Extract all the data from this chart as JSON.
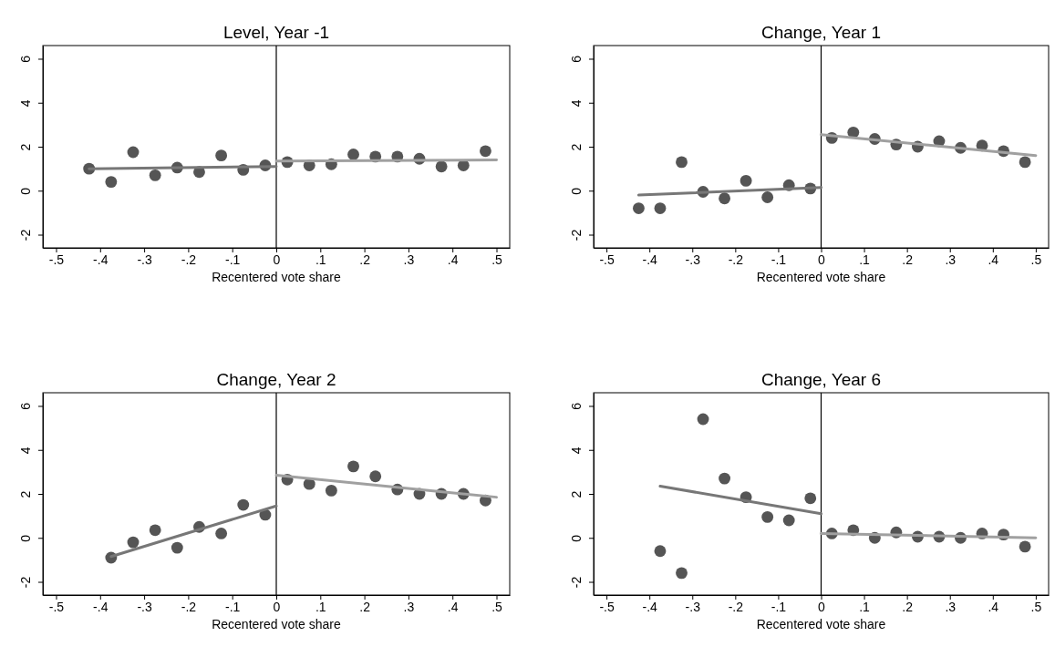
{
  "chart_data": [
    {
      "type": "scatter",
      "title": "Level, Year -1",
      "xlabel": "Recentered vote share",
      "xlim": [
        -0.53,
        0.53
      ],
      "ylim": [
        -2.6,
        6.6
      ],
      "xticks": [
        {
          "value": -0.5,
          "label": "-.5"
        },
        {
          "value": -0.4,
          "label": "-.4"
        },
        {
          "value": -0.3,
          "label": "-.3"
        },
        {
          "value": -0.2,
          "label": "-.2"
        },
        {
          "value": -0.1,
          "label": "-.1"
        },
        {
          "value": 0,
          "label": "0"
        },
        {
          "value": 0.1,
          "label": ".1"
        },
        {
          "value": 0.2,
          "label": ".2"
        },
        {
          "value": 0.3,
          "label": ".3"
        },
        {
          "value": 0.4,
          "label": ".4"
        },
        {
          "value": 0.5,
          "label": ".5"
        }
      ],
      "yticks": [
        -2,
        0,
        2,
        4,
        6
      ],
      "grid": false,
      "ref_lines": [
        {
          "axis": "x",
          "value": 0,
          "color": "#000000"
        }
      ],
      "series": [
        {
          "marker": "circle",
          "color": "#555555",
          "x": [
            -0.425,
            -0.375,
            -0.325,
            -0.275,
            -0.225,
            -0.175,
            -0.125,
            -0.075,
            -0.025,
            0.025,
            0.075,
            0.125,
            0.175,
            0.225,
            0.275,
            0.325,
            0.375,
            0.425,
            0.475
          ],
          "values": [
            1.0,
            0.4,
            1.75,
            0.7,
            1.05,
            0.85,
            1.6,
            0.95,
            1.15,
            1.3,
            1.15,
            1.2,
            1.65,
            1.55,
            1.55,
            1.45,
            1.1,
            1.15,
            1.8
          ]
        },
        {
          "type": "line",
          "color": "#777777",
          "x": [
            -0.425,
            0
          ],
          "values": [
            1.0,
            1.1
          ]
        },
        {
          "type": "line",
          "color": "#a0a0a0",
          "x": [
            0,
            0.5
          ],
          "values": [
            1.35,
            1.4
          ]
        }
      ]
    },
    {
      "type": "scatter",
      "title": "Change, Year 1",
      "xlabel": "Recentered vote share",
      "xlim": [
        -0.53,
        0.53
      ],
      "ylim": [
        -2.6,
        6.6
      ],
      "xticks": [
        {
          "value": -0.5,
          "label": "-.5"
        },
        {
          "value": -0.4,
          "label": "-.4"
        },
        {
          "value": -0.3,
          "label": "-.3"
        },
        {
          "value": -0.2,
          "label": "-.2"
        },
        {
          "value": -0.1,
          "label": "-.1"
        },
        {
          "value": 0,
          "label": "0"
        },
        {
          "value": 0.1,
          "label": ".1"
        },
        {
          "value": 0.2,
          "label": ".2"
        },
        {
          "value": 0.3,
          "label": ".3"
        },
        {
          "value": 0.4,
          "label": ".4"
        },
        {
          "value": 0.5,
          "label": ".5"
        }
      ],
      "yticks": [
        -2,
        0,
        2,
        4,
        6
      ],
      "grid": false,
      "ref_lines": [
        {
          "axis": "x",
          "value": 0,
          "color": "#000000"
        }
      ],
      "series": [
        {
          "marker": "circle",
          "color": "#555555",
          "x": [
            -0.425,
            -0.375,
            -0.325,
            -0.275,
            -0.225,
            -0.175,
            -0.125,
            -0.075,
            -0.025,
            0.025,
            0.075,
            0.125,
            0.175,
            0.225,
            0.275,
            0.325,
            0.375,
            0.425,
            0.475
          ],
          "values": [
            -0.8,
            -0.8,
            1.3,
            -0.05,
            -0.35,
            0.45,
            -0.3,
            0.25,
            0.1,
            2.4,
            2.65,
            2.35,
            2.1,
            2.0,
            2.25,
            1.95,
            2.05,
            1.8,
            1.3
          ]
        },
        {
          "type": "line",
          "color": "#777777",
          "x": [
            -0.425,
            0
          ],
          "values": [
            -0.2,
            0.15
          ]
        },
        {
          "type": "line",
          "color": "#a0a0a0",
          "x": [
            0,
            0.5
          ],
          "values": [
            2.55,
            1.6
          ]
        }
      ]
    },
    {
      "type": "scatter",
      "title": "Change, Year 2",
      "xlabel": "Recentered vote share",
      "xlim": [
        -0.53,
        0.53
      ],
      "ylim": [
        -2.6,
        6.6
      ],
      "xticks": [
        {
          "value": -0.5,
          "label": "-.5"
        },
        {
          "value": -0.4,
          "label": "-.4"
        },
        {
          "value": -0.3,
          "label": "-.3"
        },
        {
          "value": -0.2,
          "label": "-.2"
        },
        {
          "value": -0.1,
          "label": "-.1"
        },
        {
          "value": 0,
          "label": "0"
        },
        {
          "value": 0.1,
          "label": ".1"
        },
        {
          "value": 0.2,
          "label": ".2"
        },
        {
          "value": 0.3,
          "label": ".3"
        },
        {
          "value": 0.4,
          "label": ".4"
        },
        {
          "value": 0.5,
          "label": ".5"
        }
      ],
      "yticks": [
        -2,
        0,
        2,
        4,
        6
      ],
      "grid": false,
      "ref_lines": [
        {
          "axis": "x",
          "value": 0,
          "color": "#000000"
        }
      ],
      "series": [
        {
          "marker": "circle",
          "color": "#555555",
          "x": [
            -0.375,
            -0.325,
            -0.275,
            -0.225,
            -0.175,
            -0.125,
            -0.075,
            -0.025,
            0.025,
            0.075,
            0.125,
            0.175,
            0.225,
            0.275,
            0.325,
            0.375,
            0.425,
            0.475
          ],
          "values": [
            -0.9,
            -0.2,
            0.35,
            -0.45,
            0.5,
            0.2,
            1.5,
            1.05,
            2.65,
            2.45,
            2.15,
            3.25,
            2.8,
            2.2,
            2.0,
            2.0,
            2.0,
            1.7
          ]
        },
        {
          "type": "line",
          "color": "#777777",
          "x": [
            -0.375,
            0
          ],
          "values": [
            -0.85,
            1.45
          ]
        },
        {
          "type": "line",
          "color": "#a0a0a0",
          "x": [
            0,
            0.5
          ],
          "values": [
            2.85,
            1.85
          ]
        }
      ]
    },
    {
      "type": "scatter",
      "title": "Change, Year 6",
      "xlabel": "Recentered vote share",
      "xlim": [
        -0.53,
        0.53
      ],
      "ylim": [
        -2.6,
        6.6
      ],
      "xticks": [
        {
          "value": -0.5,
          "label": "-.5"
        },
        {
          "value": -0.4,
          "label": "-.4"
        },
        {
          "value": -0.3,
          "label": "-.3"
        },
        {
          "value": -0.2,
          "label": "-.2"
        },
        {
          "value": -0.1,
          "label": "-.1"
        },
        {
          "value": 0,
          "label": "0"
        },
        {
          "value": 0.1,
          "label": ".1"
        },
        {
          "value": 0.2,
          "label": ".2"
        },
        {
          "value": 0.3,
          "label": ".3"
        },
        {
          "value": 0.4,
          "label": ".4"
        },
        {
          "value": 0.5,
          "label": ".5"
        }
      ],
      "yticks": [
        -2,
        0,
        2,
        4,
        6
      ],
      "grid": false,
      "ref_lines": [
        {
          "axis": "x",
          "value": 0,
          "color": "#000000"
        }
      ],
      "series": [
        {
          "marker": "circle",
          "color": "#555555",
          "x": [
            -0.375,
            -0.325,
            -0.275,
            -0.225,
            -0.175,
            -0.125,
            -0.075,
            -0.025,
            0.025,
            0.075,
            0.125,
            0.175,
            0.225,
            0.275,
            0.325,
            0.375,
            0.425,
            0.475
          ],
          "values": [
            -0.6,
            -1.6,
            5.4,
            2.7,
            1.85,
            0.95,
            0.8,
            1.8,
            0.2,
            0.35,
            0.0,
            0.25,
            0.05,
            0.05,
            0.0,
            0.2,
            0.15,
            -0.4
          ]
        },
        {
          "type": "line",
          "color": "#777777",
          "x": [
            -0.375,
            0
          ],
          "values": [
            2.35,
            1.1
          ]
        },
        {
          "type": "line",
          "color": "#a0a0a0",
          "x": [
            0,
            0.5
          ],
          "values": [
            0.2,
            0.0
          ]
        }
      ]
    }
  ]
}
